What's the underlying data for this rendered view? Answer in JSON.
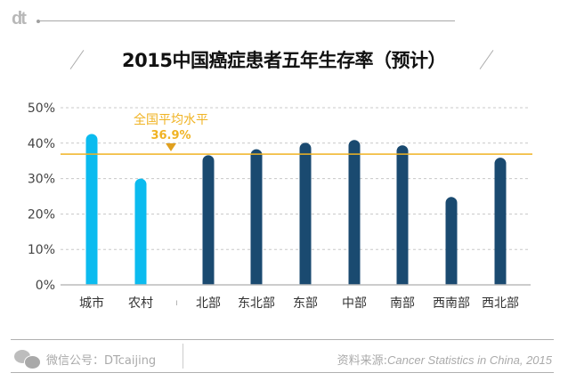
{
  "brand": {
    "logo_text": "dt"
  },
  "chart_data": {
    "type": "bar",
    "title": "2015中国癌症患者五年生存率（预计）",
    "categories": [
      "城市",
      "农村",
      "北部",
      "东北部",
      "东部",
      "中部",
      "南部",
      "西南部",
      "西北部"
    ],
    "values": [
      42.6,
      30.0,
      36.6,
      38.3,
      40.1,
      40.9,
      39.4,
      24.8,
      35.9
    ],
    "value_unit": "%",
    "groups": [
      "urban-rural",
      "urban-rural",
      "region",
      "region",
      "region",
      "region",
      "region",
      "region",
      "region"
    ],
    "group_colors": {
      "urban-rural": "#0bbbef",
      "region": "#1a4a70"
    },
    "ylim": [
      0,
      50
    ],
    "yticks": [
      0,
      10,
      20,
      30,
      40,
      50
    ],
    "ytick_labels": [
      "0%",
      "10%",
      "20%",
      "30%",
      "40%",
      "50%"
    ],
    "grid": true,
    "xlabel": "",
    "ylabel": "",
    "reference_line": {
      "value": 36.9,
      "label": "全国平均水平",
      "value_label": "36.9%",
      "color": "#f0b323"
    }
  },
  "footer": {
    "wechat_label": "微信公号：DTcaijing",
    "source_prefix": "资料来源:",
    "source_title": "Cancer Statistics in China, 2015"
  }
}
